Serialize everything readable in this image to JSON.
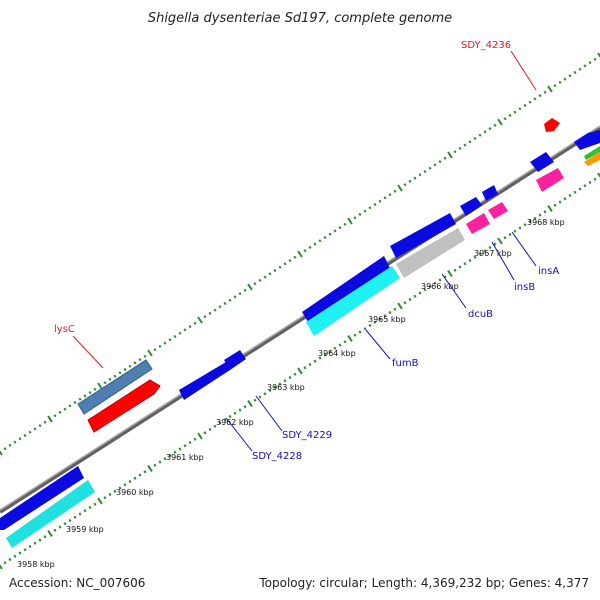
{
  "title": "Shigella dysenteriae Sd197, complete genome",
  "footer": {
    "accession": "Accession: NC_007606",
    "topology": "Topology: circular; Length: 4,369,232 bp; Genes: 4,377"
  },
  "tick_labels": [
    "3958 kbp",
    "3959 kbp",
    "3960 kbp",
    "3961 kbp",
    "3962 kbp",
    "3963 kbp",
    "3964 kbp",
    "3965 kbp",
    "3966 kbp",
    "3967 kbp",
    "3968 kbp"
  ],
  "gene_labels": [
    {
      "text": "SDY_4236",
      "color": "#e02020"
    },
    {
      "text": "lysC",
      "color": "#e02020"
    },
    {
      "text": "insA",
      "color": "#1010c0"
    },
    {
      "text": "insB",
      "color": "#1010c0"
    },
    {
      "text": "dcuB",
      "color": "#1010c0"
    },
    {
      "text": "fumB",
      "color": "#1010c0"
    },
    {
      "text": "SDY_4229",
      "color": "#1010c0"
    },
    {
      "text": "SDY_4228",
      "color": "#1010c0"
    }
  ],
  "colors": {
    "backbone": "#808080",
    "tick_green": "#2e8b2e",
    "cds_blue": "#0a0ae0",
    "cds_red": "#ff0000",
    "cds_steelblue": "#4f7fb0",
    "cds_cyan": "#20e0e0",
    "cds_teal": "#20c8c8",
    "cds_gray": "#c0c0c0",
    "cds_pink": "#ff20a0",
    "cds_green": "#30c030",
    "cds_orange": "#ff9900"
  }
}
